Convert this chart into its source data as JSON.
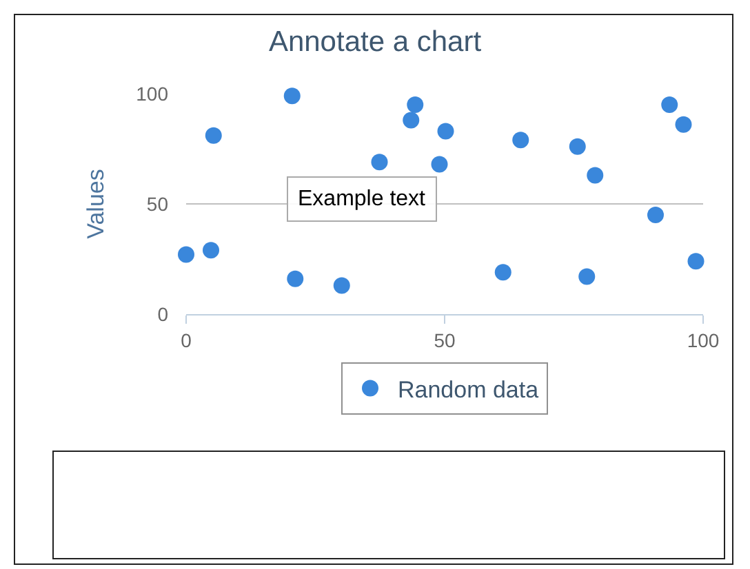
{
  "chart_data": {
    "type": "scatter",
    "title": "Annotate a chart",
    "ylabel": "Values",
    "series": [
      {
        "name": "Random data",
        "color": "#3a87db",
        "x": [
          0,
          4.8,
          5.3,
          20.5,
          21.1,
          30.1,
          37.4,
          43.5,
          44.3,
          49,
          50.2,
          61.3,
          64.7,
          75.7,
          77.5,
          79.1,
          90.8,
          93.5,
          96.2,
          98.6
        ],
        "values": [
          27,
          29,
          81,
          99,
          16,
          13,
          69,
          88,
          95,
          68,
          83,
          19,
          79,
          76,
          17,
          63,
          45,
          95,
          86,
          24
        ]
      }
    ],
    "annotations": [
      "Example text"
    ],
    "xlim": [
      0,
      100
    ],
    "xticks": [
      0,
      50,
      100
    ],
    "ylim": [
      0,
      100
    ],
    "yticks": [
      0,
      50,
      100
    ],
    "grid": "y",
    "legend": "bottom",
    "marker": "circle"
  }
}
